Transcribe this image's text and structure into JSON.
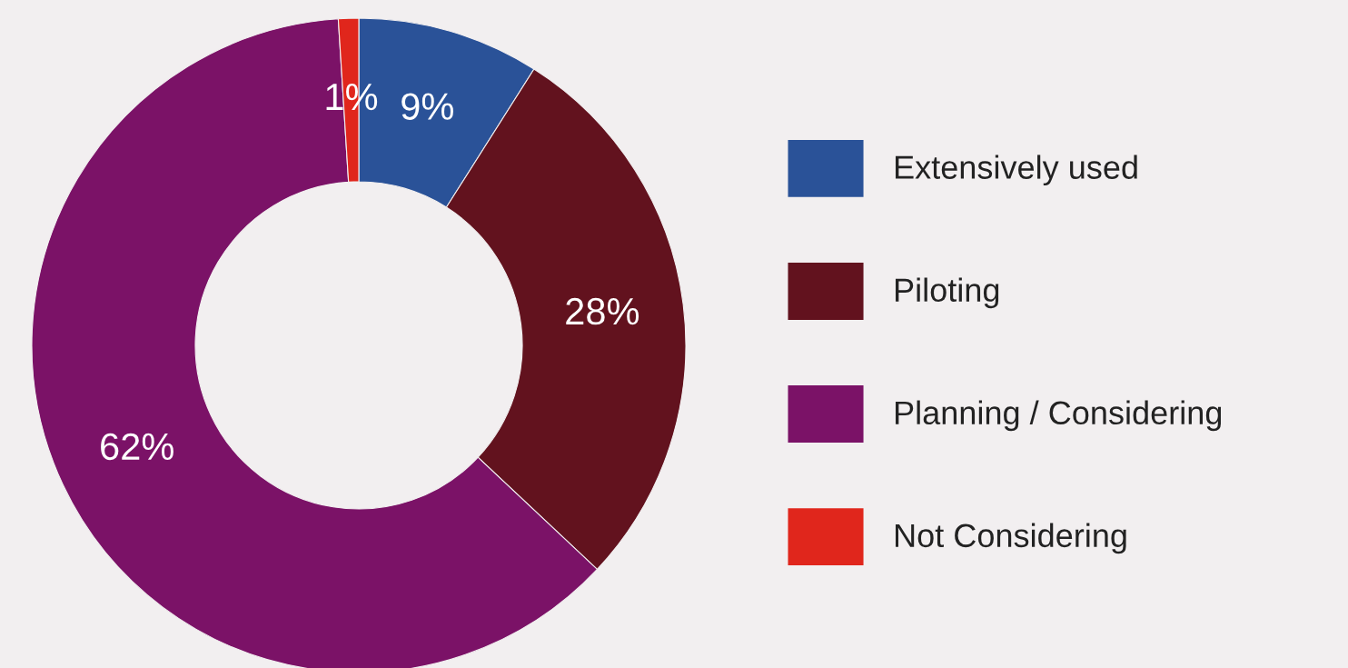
{
  "chart_data": {
    "type": "donut",
    "categories": [
      "Extensively used",
      "Piloting",
      "Planning / Considering",
      "Not Considering"
    ],
    "values": [
      9,
      28,
      62,
      1
    ],
    "colors": [
      "#2a5298",
      "#62121e",
      "#7b1267",
      "#e0261c"
    ],
    "value_labels": [
      "9%",
      "28%",
      "62%",
      "1%"
    ],
    "legend": "right"
  }
}
